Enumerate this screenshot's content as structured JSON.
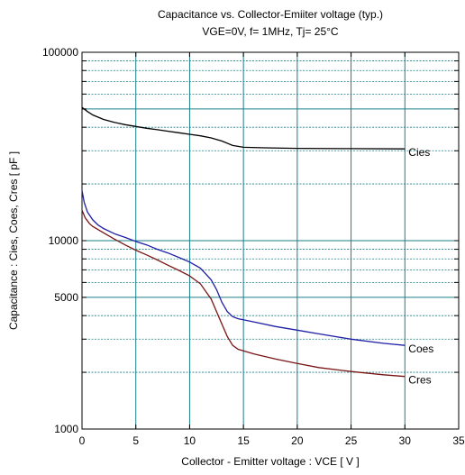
{
  "chart_data": {
    "type": "line",
    "title": "Capacitance  vs.  Collector-Emiiter voltage  (typ.)",
    "subtitle": "VGE=0V,  f= 1MHz,  Tj= 25°C",
    "xlabel": "Collector - Emitter voltage  :  VCE  [ V ]",
    "ylabel": "Capacitance  :  Cies, Coes, Cres  [ pF ]",
    "xlim": [
      0,
      35
    ],
    "ylim": [
      1000,
      100000
    ],
    "yscale": "log",
    "x_ticks": [
      0,
      5,
      10,
      15,
      20,
      25,
      30,
      35
    ],
    "y_tick_labels": [
      {
        "value": 1000,
        "label": "1000"
      },
      {
        "value": 5000,
        "label": "5000"
      },
      {
        "value": 10000,
        "label": "10000"
      },
      {
        "value": 100000,
        "label": "100000"
      }
    ],
    "grid": true,
    "series": [
      {
        "name": "Cies",
        "color": "#000000",
        "x": [
          0,
          0.5,
          1,
          2,
          3,
          4,
          5,
          6,
          7,
          8,
          9,
          10,
          11,
          12,
          13,
          14,
          15,
          17,
          20,
          25,
          30
        ],
        "y": [
          51000,
          48500,
          46500,
          44000,
          42500,
          41300,
          40400,
          39500,
          38800,
          38100,
          37400,
          36700,
          36000,
          35100,
          33800,
          32000,
          31300,
          31100,
          30900,
          30800,
          30700
        ]
      },
      {
        "name": "Coes",
        "color": "#1f1fa6",
        "x": [
          0,
          0.2,
          0.5,
          1,
          1.5,
          2,
          3,
          4,
          5,
          6,
          7,
          8,
          9,
          10,
          11,
          12,
          12.5,
          13,
          13.5,
          14,
          14.5,
          15,
          16,
          18,
          20,
          22,
          25,
          28,
          30
        ],
        "y": [
          18500,
          16000,
          14200,
          12900,
          12100,
          11600,
          10900,
          10400,
          9900,
          9500,
          9000,
          8600,
          8150,
          7700,
          7150,
          6200,
          5500,
          4700,
          4200,
          3950,
          3850,
          3800,
          3700,
          3500,
          3350,
          3200,
          3000,
          2850,
          2780
        ]
      },
      {
        "name": "Cres",
        "color": "#7a1515",
        "x": [
          0,
          0.3,
          0.7,
          1,
          2,
          3,
          4,
          5,
          6,
          7,
          8,
          9,
          10,
          11,
          12,
          12.5,
          13,
          13.5,
          14,
          14.5,
          15,
          16,
          18,
          20,
          22,
          25,
          28,
          30
        ],
        "y": [
          14500,
          13200,
          12300,
          11900,
          11000,
          10200,
          9500,
          8900,
          8400,
          7900,
          7400,
          6950,
          6500,
          5900,
          4900,
          4200,
          3600,
          3100,
          2780,
          2650,
          2600,
          2500,
          2350,
          2230,
          2120,
          2020,
          1940,
          1900
        ]
      }
    ]
  }
}
